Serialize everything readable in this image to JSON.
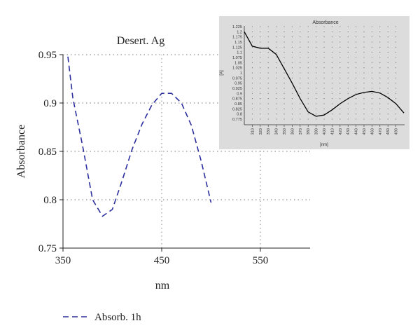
{
  "chart_data": [
    {
      "type": "line",
      "title": "Desert. Ag",
      "xlabel": "nm",
      "ylabel": "Absorbance",
      "xlim": [
        350,
        600
      ],
      "ylim": [
        0.75,
        0.95
      ],
      "xticks": [
        350,
        450,
        550
      ],
      "xtick_labels": [
        "350",
        "450",
        "550"
      ],
      "yticks": [
        0.75,
        0.8,
        0.85,
        0.9,
        0.95
      ],
      "ytick_labels": [
        "0.75",
        "0.8",
        "0.85",
        "0.9",
        "0.95"
      ],
      "grid": true,
      "legend": "bottom-left",
      "series": [
        {
          "name": "Absorb. 1h",
          "color": "#2c2f9e",
          "line_style": "dashed",
          "x": [
            355,
            360,
            370,
            380,
            390,
            400,
            410,
            420,
            430,
            440,
            450,
            460,
            470,
            480,
            490,
            500
          ],
          "y": [
            0.948,
            0.905,
            0.855,
            0.8,
            0.783,
            0.79,
            0.82,
            0.852,
            0.878,
            0.898,
            0.91,
            0.91,
            0.9,
            0.877,
            0.84,
            0.797
          ]
        }
      ]
    },
    {
      "type": "line",
      "title": "Absorbance",
      "xlabel": "[nm]",
      "ylabel": "[A]",
      "xlim": [
        300,
        500
      ],
      "ylim": [
        0.75,
        1.225
      ],
      "xtick_labels": [
        "310",
        "320",
        "330",
        "340",
        "350",
        "360",
        "370",
        "380",
        "390",
        "400",
        "410",
        "420",
        "430",
        "440",
        "450",
        "460",
        "470",
        "480",
        "490"
      ],
      "ytick_labels": [
        "1.225",
        "1.2",
        "1.175",
        "1.15",
        "1.125",
        "1.1",
        "1.075",
        "1.05",
        "1.025",
        "1",
        "0.975",
        "0.95",
        "0.925",
        "0.9",
        "0.875",
        "0.85",
        "0.825",
        "0.8",
        "0.775"
      ],
      "grid": true,
      "background": "#dcdcdc",
      "series": [
        {
          "color": "#000000",
          "line_style": "solid",
          "x": [
            300,
            310,
            320,
            330,
            340,
            350,
            360,
            370,
            380,
            390,
            400,
            410,
            420,
            430,
            440,
            450,
            460,
            470,
            480,
            490,
            500
          ],
          "y": [
            1.2,
            1.13,
            1.12,
            1.12,
            1.09,
            1.02,
            0.95,
            0.875,
            0.81,
            0.789,
            0.795,
            0.82,
            0.85,
            0.875,
            0.895,
            0.905,
            0.91,
            0.902,
            0.88,
            0.85,
            0.805
          ]
        }
      ]
    }
  ]
}
